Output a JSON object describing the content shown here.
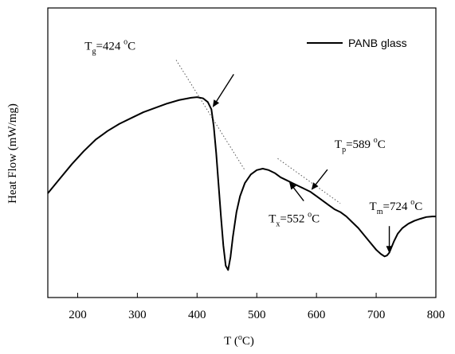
{
  "chart_data": {
    "type": "line",
    "title": "",
    "xlabel": {
      "main": "T (",
      "sup": "o",
      "tail": "C)"
    },
    "ylabel": "Heat Flow (mW/mg)",
    "xlim": [
      150,
      800
    ],
    "ylim": [
      0,
      10
    ],
    "xticks": [
      200,
      300,
      400,
      500,
      600,
      700,
      800
    ],
    "yticks_visible": false,
    "grid": false,
    "legend": {
      "position": "top-right",
      "entries": [
        "PANB glass"
      ]
    },
    "series": [
      {
        "name": "PANB glass",
        "color": "#000000",
        "x": [
          150,
          170,
          190,
          210,
          230,
          250,
          270,
          290,
          310,
          330,
          350,
          370,
          390,
          400,
          410,
          418,
          424,
          428,
          432,
          436,
          440,
          444,
          448,
          452,
          456,
          460,
          466,
          472,
          480,
          490,
          500,
          510,
          520,
          530,
          540,
          550,
          560,
          570,
          580,
          590,
          600,
          610,
          620,
          630,
          640,
          650,
          660,
          670,
          680,
          690,
          700,
          708,
          714,
          718,
          722,
          726,
          730,
          736,
          744,
          754,
          764,
          774,
          784,
          794,
          800
        ],
        "y": [
          3.6,
          4.1,
          4.6,
          5.05,
          5.45,
          5.75,
          6.0,
          6.2,
          6.4,
          6.55,
          6.7,
          6.82,
          6.9,
          6.92,
          6.88,
          6.75,
          6.5,
          5.9,
          5.0,
          3.9,
          2.8,
          1.8,
          1.1,
          0.95,
          1.4,
          2.1,
          2.95,
          3.5,
          3.95,
          4.25,
          4.4,
          4.45,
          4.4,
          4.3,
          4.15,
          4.05,
          3.95,
          3.85,
          3.75,
          3.65,
          3.5,
          3.35,
          3.2,
          3.05,
          2.95,
          2.8,
          2.6,
          2.4,
          2.15,
          1.9,
          1.65,
          1.5,
          1.42,
          1.45,
          1.55,
          1.75,
          1.95,
          2.2,
          2.4,
          2.55,
          2.65,
          2.72,
          2.78,
          2.8,
          2.8
        ]
      }
    ],
    "tangent_lines": [
      {
        "x": [
          365,
          480
        ],
        "y": [
          8.2,
          4.4
        ]
      },
      {
        "x": [
          535,
          640
        ],
        "y": [
          4.8,
          3.25
        ]
      }
    ],
    "annotations": [
      {
        "id": "tg",
        "base": "T",
        "sub": "g",
        "value": "=424 ",
        "sup": "o",
        "unit": "C",
        "x": 424,
        "y": 6.5
      },
      {
        "id": "tp",
        "base": "T",
        "sub": "p",
        "value": "=589 ",
        "sup": "o",
        "unit": "C",
        "x": 589,
        "y": 3.65
      },
      {
        "id": "tx",
        "base": "T",
        "sub": "x",
        "value": "=552 ",
        "sup": "o",
        "unit": "C",
        "x": 552,
        "y": 4.05
      },
      {
        "id": "tm",
        "base": "T",
        "sub": "m",
        "value": "=724 ",
        "sup": "o",
        "unit": "C",
        "x": 722,
        "y": 1.45
      }
    ]
  }
}
